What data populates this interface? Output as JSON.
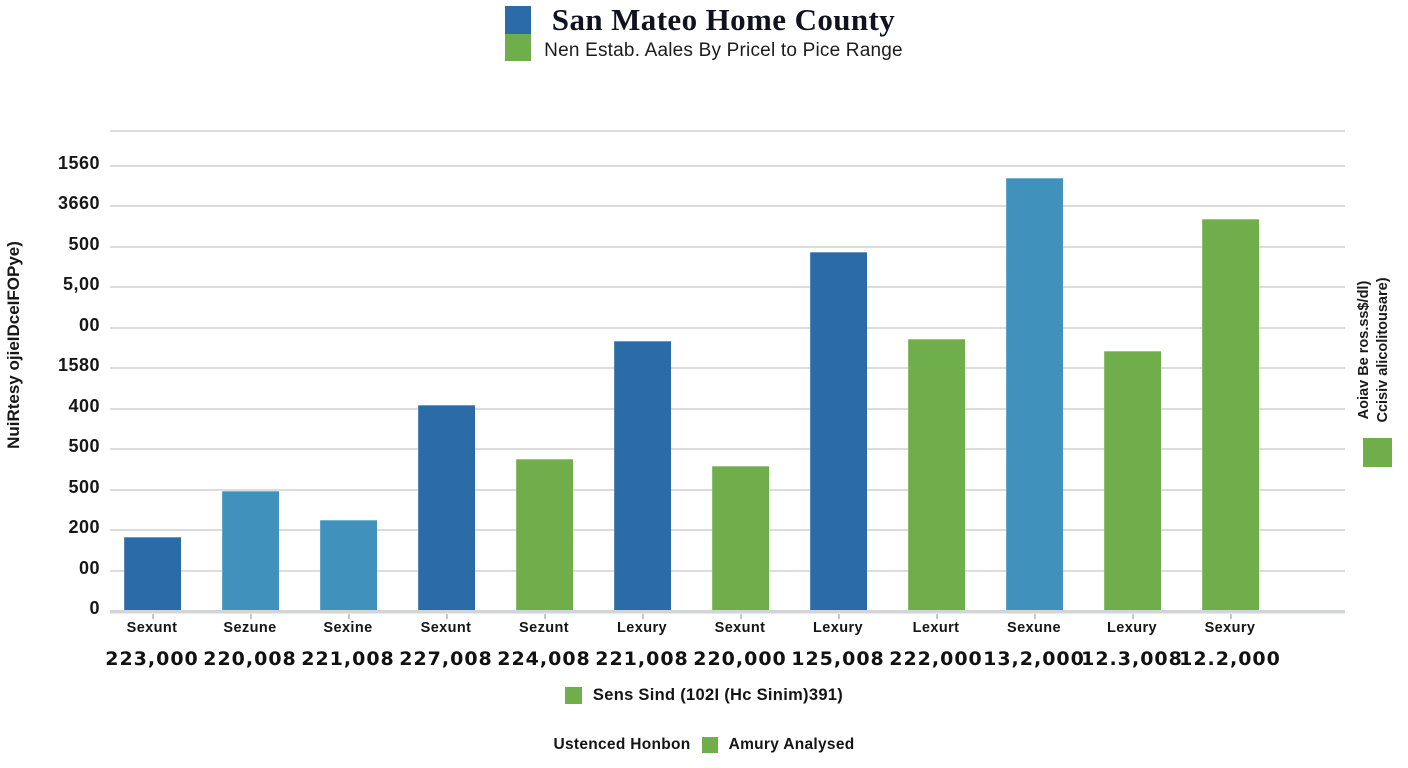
{
  "header": {
    "title": "San Mateo Home County",
    "subtitle": "Nen Estab. Aales By Pricel to Pice Range"
  },
  "palette": {
    "dark_blue": "#2b6ca8",
    "light_blue": "#4191bd",
    "green": "#6fae4b",
    "grid": "#dcdcdc",
    "axis": "#d2d5d8",
    "text": "#1b1b1b"
  },
  "y_axis": {
    "title": "NuiRtesy ojieIDceIFOPye)",
    "tick_labels": [
      "1560",
      "3660",
      "500",
      "5,00",
      "00",
      "1580",
      "400",
      "500",
      "500",
      "200",
      "00",
      "0"
    ]
  },
  "right_axis": {
    "line1": "Aoiav Be ros.ss$/dl)",
    "line2": "Ccisiv alicolitousare)",
    "swatch_color": "#6fae4b"
  },
  "legend_mid": {
    "label": "Sens Sind (102I (Hc Sinim)391)"
  },
  "legend_bottom": {
    "left_label": "Ustenced Honbon",
    "right_label": "Amury Analysed"
  },
  "chart_data": {
    "type": "bar",
    "title": "San Mateo Home County",
    "subtitle": "Nen Estab. Aales By Pricel to Pice Range",
    "ylabel": "NuiRtesy ojieIDceIFOPye)",
    "y_tick_labels": [
      "1560",
      "3660",
      "500",
      "5,00",
      "00",
      "1580",
      "400",
      "500",
      "500",
      "200",
      "00",
      "0"
    ],
    "value_note": "Y-axis tick text is garbled in the source image; bar heights are recorded as percent of full plot height",
    "grid": true,
    "legend": [
      "Sens Sind (102I (Hc Sinim)391)"
    ],
    "legend_position": "bottom",
    "categories": [
      "Sexunt",
      "Sezune",
      "Sexine",
      "Sexunt",
      "Sezunt",
      "Lexury",
      "Sexunt",
      "Lexury",
      "Lexurt",
      "Sexune",
      "Lexury",
      "Sexury"
    ],
    "price_labels": [
      "223,000",
      "220,008",
      "221,008",
      "227,008",
      "224,008",
      "221,008",
      "220,000",
      "125,008",
      "222,000",
      "13,2,000",
      "12.3,008",
      "12.2,000"
    ],
    "bars": [
      {
        "category": "Sexunt",
        "price": "223,000",
        "height_pct": 15.2,
        "color": "dark_blue"
      },
      {
        "category": "Sezune",
        "price": "220,008",
        "height_pct": 24.8,
        "color": "light_blue"
      },
      {
        "category": "Sexine",
        "price": "221,008",
        "height_pct": 18.8,
        "color": "light_blue"
      },
      {
        "category": "Sexunt",
        "price": "227,008",
        "height_pct": 42.7,
        "color": "dark_blue"
      },
      {
        "category": "Sezunt",
        "price": "224,008",
        "height_pct": 31.5,
        "color": "green"
      },
      {
        "category": "Lexury",
        "price": "221,008",
        "height_pct": 56.0,
        "color": "dark_blue"
      },
      {
        "category": "Sexunt",
        "price": "220,000",
        "height_pct": 30.0,
        "color": "green"
      },
      {
        "category": "Lexury",
        "price": "125,008",
        "height_pct": 74.6,
        "color": "dark_blue"
      },
      {
        "category": "Lexurt",
        "price": "222,000",
        "height_pct": 56.5,
        "color": "green"
      },
      {
        "category": "Sexune",
        "price": "13,2,000",
        "height_pct": 90.0,
        "color": "light_blue"
      },
      {
        "category": "Lexury",
        "price": "12.3,008",
        "height_pct": 54.0,
        "color": "green"
      },
      {
        "category": "Sexury",
        "price": "12.2,000",
        "height_pct": 81.5,
        "color": "green"
      }
    ]
  }
}
